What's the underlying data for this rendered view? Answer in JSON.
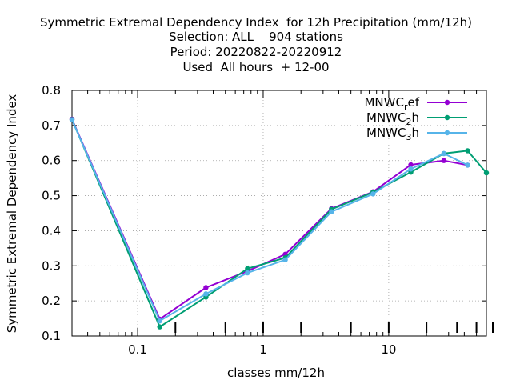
{
  "chart_data": {
    "type": "line",
    "title_lines": [
      "Symmetric Extremal Dependency Index  for 12h Precipitation (mm/12h)",
      "Selection: ALL    904 stations",
      "Period: 20220822-20220912",
      "Used  All hours  + 12-00"
    ],
    "xlabel": "classes mm/12h",
    "ylabel": "Symmetric Extremal Dependency Index",
    "x_scale": "log",
    "xlim": [
      0.03,
      60
    ],
    "ylim": [
      0.1,
      0.8
    ],
    "x_tick_labels": [
      {
        "value": 0.1,
        "label": "0.1"
      },
      {
        "value": 1,
        "label": "1"
      },
      {
        "value": 10,
        "label": "10"
      }
    ],
    "y_ticks": [
      {
        "value": 0.1,
        "label": "0.1"
      },
      {
        "value": 0.2,
        "label": "0.2"
      },
      {
        "value": 0.3,
        "label": "0.3"
      },
      {
        "value": 0.4,
        "label": "0.4"
      },
      {
        "value": 0.5,
        "label": "0.5"
      },
      {
        "value": 0.6,
        "label": "0.6"
      },
      {
        "value": 0.7,
        "label": "0.7"
      },
      {
        "value": 0.8,
        "label": "0.8"
      }
    ],
    "grid": true,
    "legend_position": "top-right",
    "series": [
      {
        "name_base": "MNWC",
        "name_sub": "r",
        "name_rest": "ef",
        "color": "#9400d3",
        "x": [
          0.03,
          0.15,
          0.35,
          0.75,
          1.5,
          3.5,
          7.5,
          15,
          27.5,
          42.5
        ],
        "y": [
          0.718,
          0.148,
          0.238,
          0.285,
          0.333,
          0.463,
          0.511,
          0.588,
          0.6,
          0.587
        ]
      },
      {
        "name_base": "MNWC",
        "name_sub": "2",
        "name_rest": "h",
        "color": "#009e73",
        "x": [
          0.03,
          0.15,
          0.35,
          0.75,
          1.5,
          3.5,
          7.5,
          15,
          27.5,
          42.5,
          60
        ],
        "y": [
          0.717,
          0.126,
          0.211,
          0.292,
          0.323,
          0.461,
          0.51,
          0.567,
          0.62,
          0.628,
          0.565
        ]
      },
      {
        "name_base": "MNWC",
        "name_sub": "3",
        "name_rest": "h",
        "color": "#56b4e9",
        "x": [
          0.03,
          0.15,
          0.35,
          0.75,
          1.5,
          3.5,
          7.5,
          15,
          27.5,
          42.5
        ],
        "y": [
          0.716,
          0.143,
          0.22,
          0.28,
          0.317,
          0.454,
          0.505,
          0.576,
          0.62,
          0.587
        ]
      }
    ]
  }
}
